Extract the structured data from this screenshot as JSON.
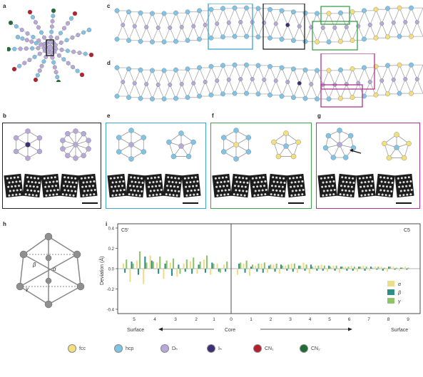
{
  "panel_labels": {
    "a": "a",
    "b": "b",
    "c": "c",
    "d": "d",
    "e": "e",
    "f": "f",
    "g": "g",
    "h": "h",
    "i": "i"
  },
  "colors": {
    "fcc": "#f2e07c",
    "hcp": "#7fc4e6",
    "dh": "#b7a8d9",
    "ih": "#3c2f73",
    "cn1": "#b51e2a",
    "cn2": "#1f6b36",
    "box_black": "#222222",
    "box_blue": "#3fa3cf",
    "box_green": "#3ea14b",
    "box_magenta": "#b0348e",
    "alpha": "#eedd88",
    "beta": "#2e8f87",
    "gamma": "#8fc46a"
  },
  "panel_h": {
    "labels": {
      "beta": "β",
      "alpha": "α",
      "gamma": "γ"
    }
  },
  "chart_data": {
    "type": "bar",
    "left_label": "C5'",
    "right_label": "C5",
    "ylabel": "Deviation (Å)",
    "ylim": [
      -0.4,
      0.4
    ],
    "yticks": [
      "0.4",
      "0.2",
      "0.0",
      "-0.2",
      "-0.4"
    ],
    "x_ticks_left": [
      "5",
      "4",
      "3",
      "2",
      "1"
    ],
    "x_center_tick": "0",
    "x_ticks_right": [
      "1",
      "2",
      "3",
      "4",
      "5",
      "6",
      "7",
      "8",
      "9"
    ],
    "xlabel_left": "Surface",
    "xlabel_center": "Core",
    "xlabel_right": "Surface",
    "legend": [
      "α",
      "β",
      "γ"
    ],
    "series": [
      {
        "name": "α",
        "values": [
          0.05,
          -0.13,
          0.08,
          -0.15,
          0.13,
          0.06,
          -0.1,
          0.06,
          -0.08,
          0.05,
          0.07,
          -0.05,
          0.09,
          -0.06,
          0.05,
          0.04,
          -0.06,
          0.05,
          -0.07,
          0.03,
          0.05,
          -0.04,
          0.04,
          -0.05,
          0.03,
          0.05,
          -0.04,
          0.06,
          -0.05,
          0.03,
          0.04,
          -0.03,
          0.03,
          -0.04,
          0.02,
          0.03,
          -0.03,
          0.03,
          -0.02,
          0.02,
          0.02,
          -0.03,
          0.02,
          -0.02,
          0.02
        ]
      },
      {
        "name": "β",
        "values": [
          -0.04,
          0.07,
          -0.06,
          0.12,
          0.08,
          -0.05,
          0.05,
          -0.07,
          0.04,
          -0.03,
          -0.05,
          0.04,
          -0.04,
          0.06,
          -0.03,
          -0.03,
          0.05,
          -0.04,
          0.02,
          -0.03,
          -0.04,
          0.03,
          -0.03,
          0.04,
          -0.02,
          -0.03,
          0.03,
          -0.02,
          0.04,
          -0.02,
          -0.02,
          0.03,
          -0.02,
          0.02,
          -0.02,
          -0.02,
          0.02,
          -0.02,
          0.02,
          -0.01,
          -0.02,
          0.02,
          -0.01,
          0.01,
          -0.01
        ]
      },
      {
        "name": "γ",
        "values": [
          0.09,
          0.05,
          0.17,
          0.06,
          0.07,
          0.12,
          0.08,
          0.1,
          -0.05,
          0.09,
          0.11,
          0.07,
          0.13,
          0.05,
          -0.04,
          0.07,
          0.06,
          0.08,
          0.04,
          0.05,
          0.06,
          0.04,
          0.05,
          0.03,
          0.04,
          0.05,
          0.03,
          0.04,
          0.02,
          0.03,
          0.03,
          0.02,
          0.03,
          0.02,
          0.02,
          0.02,
          0.02,
          0.02,
          0.01,
          0.02,
          0.01,
          0.02,
          0.01,
          0.01,
          0.01
        ]
      }
    ]
  },
  "legend_items": [
    {
      "label": "fcc",
      "color": "#f2e07c"
    },
    {
      "label": "hcp",
      "color": "#7fc4e6"
    },
    {
      "label": "Dₕ",
      "color": "#b7a8d9"
    },
    {
      "label": "Iₕ",
      "color": "#3c2f73"
    },
    {
      "label": "CN₁",
      "color": "#b51e2a"
    },
    {
      "label": "CN₂",
      "color": "#1f6b36"
    }
  ]
}
